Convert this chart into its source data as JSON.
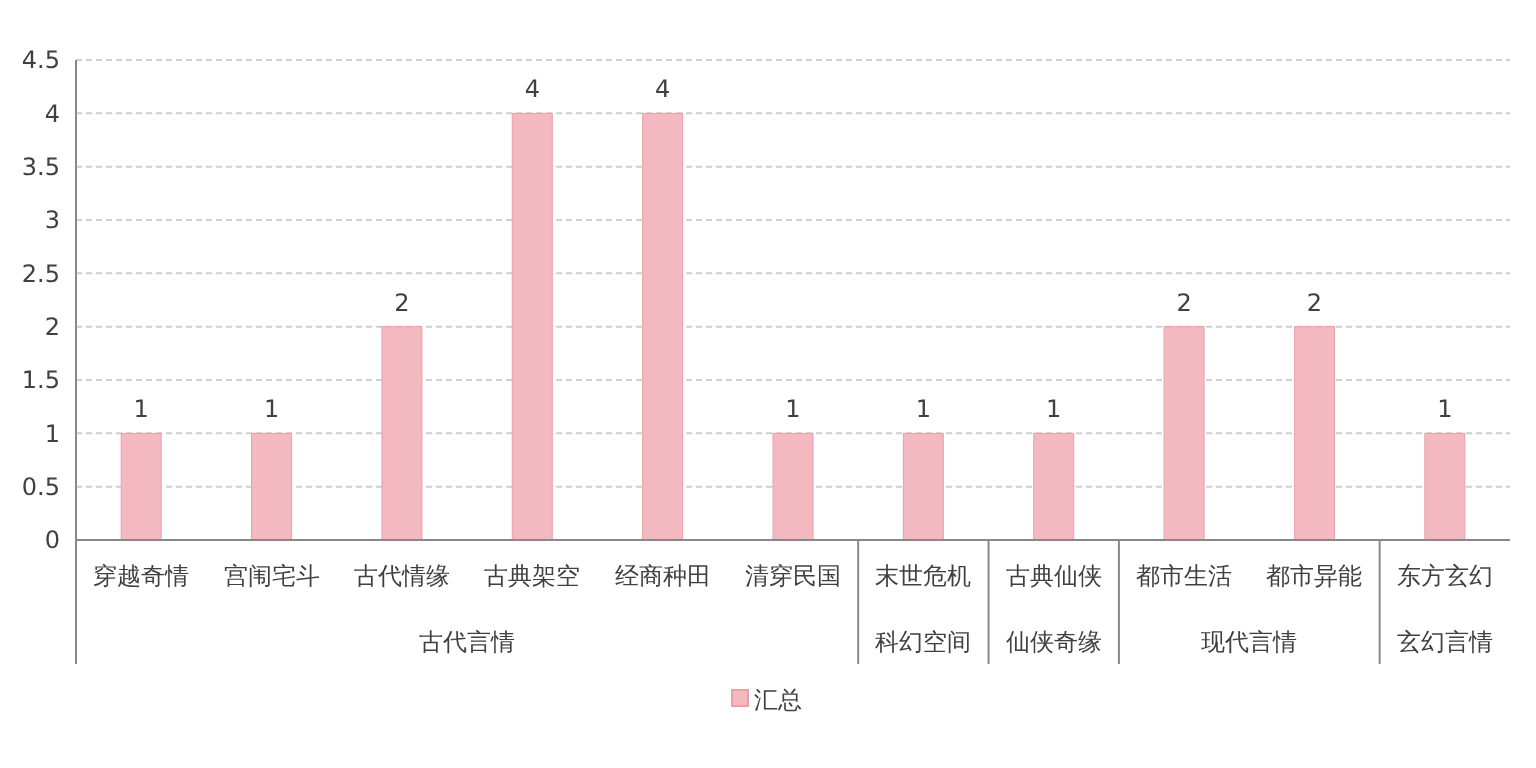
{
  "chart_data": {
    "type": "bar",
    "categories": [
      "穿越奇情",
      "宫闱宅斗",
      "古代情缘",
      "古典架空",
      "经商种田",
      "清穿民国",
      "末世危机",
      "古典仙侠",
      "都市生活",
      "都市异能",
      "东方玄幻"
    ],
    "series": [
      {
        "name": "汇总",
        "color": "#f4b9c0",
        "values": [
          1,
          1,
          2,
          4,
          4,
          1,
          1,
          1,
          2,
          2,
          1
        ]
      }
    ],
    "ylim": [
      0,
      4.5
    ],
    "yticks": [
      0,
      0.5,
      1,
      1.5,
      2,
      2.5,
      3,
      3.5,
      4,
      4.5
    ],
    "grid": "y",
    "data_labels": true,
    "legend": "bottom",
    "annotations": [
      "古代言情",
      "科幻空间",
      "仙侠奇缘",
      "现代言情",
      "玄幻言情"
    ]
  }
}
